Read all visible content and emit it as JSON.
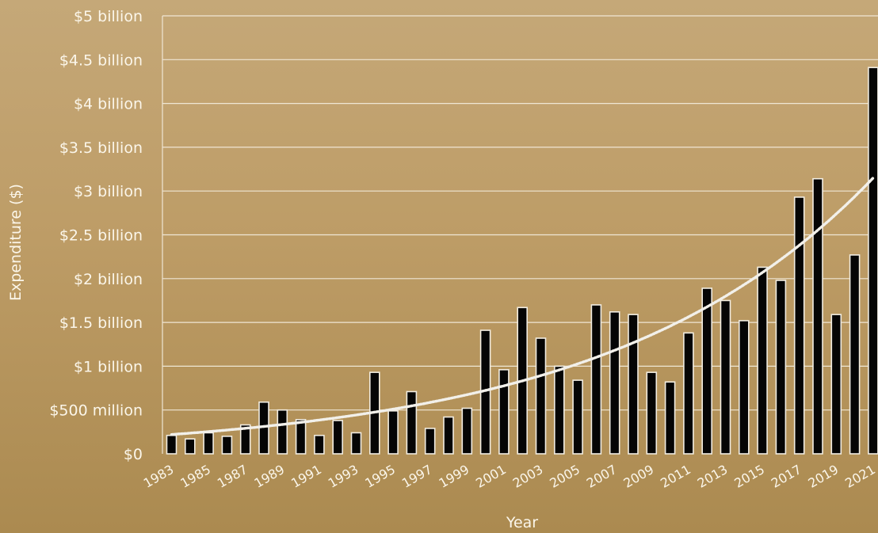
{
  "chart_data": {
    "type": "bar",
    "xlabel": "Year",
    "ylabel": "Expenditure ($)",
    "ylim": [
      0,
      5
    ],
    "y_unit": "billion $",
    "y_tick_values": [
      0,
      0.5,
      1,
      1.5,
      2,
      2.5,
      3,
      3.5,
      4,
      4.5,
      5
    ],
    "y_tick_labels": [
      "$0",
      "$500 million",
      "$1 billion",
      "$1.5 billion",
      "$2 billion",
      "$2.5 billion",
      "$3 billion",
      "$3.5 billion",
      "$4 billion",
      "$4.5 billion",
      "$5 billion"
    ],
    "categories": [
      "1983",
      "1984",
      "1985",
      "1986",
      "1987",
      "1988",
      "1989",
      "1990",
      "1991",
      "1992",
      "1993",
      "1994",
      "1995",
      "1996",
      "1997",
      "1998",
      "1999",
      "2000",
      "2001",
      "2002",
      "2003",
      "2004",
      "2005",
      "2006",
      "2007",
      "2008",
      "2009",
      "2010",
      "2011",
      "2012",
      "2013",
      "2014",
      "2015",
      "2016",
      "2017",
      "2018",
      "2019",
      "2020",
      "2021"
    ],
    "x_tick_labels": [
      "1983",
      "1985",
      "1987",
      "1989",
      "1991",
      "1993",
      "1995",
      "1997",
      "1999",
      "2001",
      "2003",
      "2005",
      "2007",
      "2009",
      "2011",
      "2013",
      "2015",
      "2017",
      "2019",
      "2021"
    ],
    "values": [
      0.21,
      0.17,
      0.24,
      0.2,
      0.33,
      0.59,
      0.5,
      0.39,
      0.21,
      0.38,
      0.24,
      0.93,
      0.49,
      0.71,
      0.29,
      0.42,
      0.52,
      1.41,
      0.96,
      1.67,
      1.32,
      1.0,
      0.84,
      1.7,
      1.62,
      1.59,
      0.93,
      0.82,
      1.38,
      1.89,
      1.75,
      1.52,
      2.13,
      1.98,
      2.93,
      3.14,
      1.59,
      2.27,
      4.41
    ],
    "trendline": {
      "type": "exponential",
      "start_value": 0.22,
      "end_value": 3.15
    },
    "grid": true,
    "colors": {
      "bar_fill": "#050505",
      "bar_edge": "#f2ede2",
      "gridline": "#efe6d4",
      "text": "#fbf6ea",
      "trendline": "#f2f0ea"
    }
  }
}
